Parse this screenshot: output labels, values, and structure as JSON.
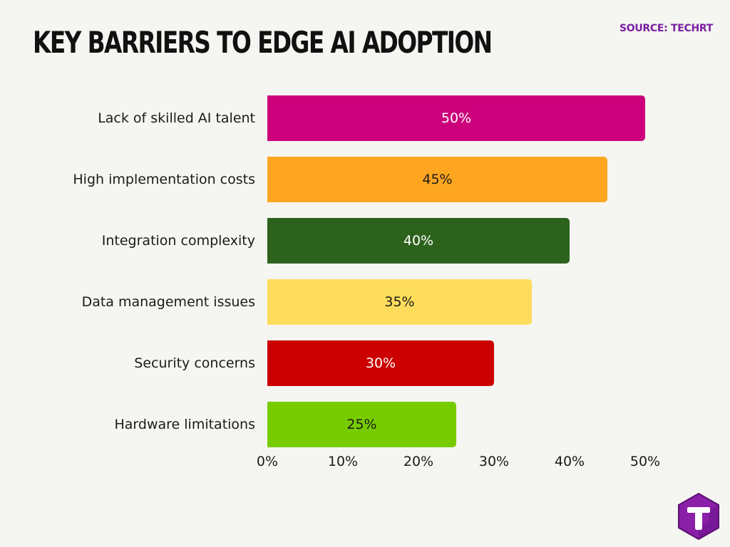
{
  "header": {
    "title": "KEY BARRIERS TO EDGE AI ADOPTION",
    "source": "SOURCE: TECHRT"
  },
  "colors": {
    "background": "#f5f5f1",
    "brand": "#7a1fa2"
  },
  "logo": {
    "icon": "techrt-t-logo-icon"
  },
  "chart_data": {
    "type": "bar",
    "orientation": "horizontal",
    "title": "KEY BARRIERS TO EDGE AI ADOPTION",
    "xlabel": "",
    "ylabel": "",
    "xlim": [
      0,
      50
    ],
    "categories": [
      "Lack of skilled AI talent",
      "High implementation costs",
      "Integration complexity",
      "Data management issues",
      "Security concerns",
      "Hardware limitations"
    ],
    "values": [
      50,
      45,
      40,
      35,
      30,
      25
    ],
    "value_labels": [
      "50%",
      "45%",
      "40%",
      "35%",
      "30%",
      "25%"
    ],
    "bar_colors": [
      "#cc007a",
      "#ffa621",
      "#2d621d",
      "#ffdd5c",
      "#cc0000",
      "#77cc00"
    ],
    "label_colors": [
      "#ffffff",
      "#1a1a1a",
      "#ffffff",
      "#1a1a1a",
      "#ffffff",
      "#1a1a1a"
    ],
    "x_ticks": [
      0,
      10,
      20,
      30,
      40,
      50
    ],
    "x_tick_labels": [
      "0%",
      "10%",
      "20%",
      "30%",
      "40%",
      "50%"
    ],
    "grid": false,
    "legend": "none"
  }
}
